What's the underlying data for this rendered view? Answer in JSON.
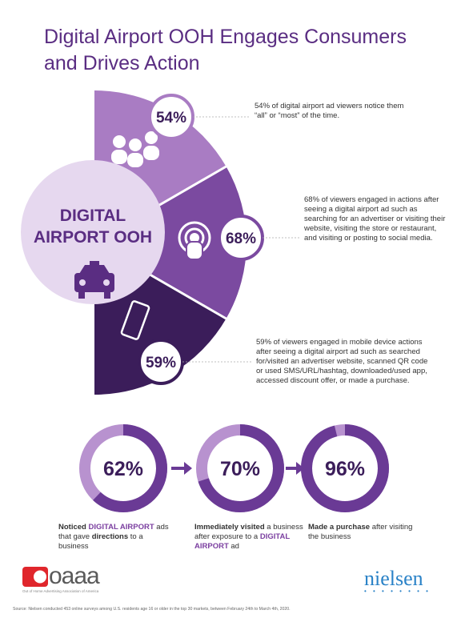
{
  "title": "Digital Airport OOH Engages Consumers and Drives Action",
  "center_label": [
    "DIGITAL",
    "AIRPORT OOH"
  ],
  "colors": {
    "title": "#5a2d82",
    "segment_light": "#a97cc3",
    "segment_mid": "#7b4aa0",
    "segment_dark": "#3b1d5a",
    "center_circle": "#e6d8ef",
    "donut_fill": "#6a3a95",
    "donut_track": "#b892cf",
    "highlight": "#7b3fa0"
  },
  "icons": [
    "people-icon",
    "broadcast-person-icon",
    "mobile-phone-icon",
    "taxi-icon",
    "arrow-right-icon"
  ],
  "chart_data": [
    {
      "type": "pie",
      "categories": [
        "notice ads",
        "engaged in actions",
        "engaged in mobile device actions"
      ],
      "values": [
        54,
        68,
        59
      ],
      "value_labels": [
        "54%",
        "68%",
        "59%"
      ]
    },
    {
      "type": "pie",
      "series": [
        {
          "name": "Noticed DIGITAL AIRPORT ads that gave directions to a business",
          "values": [
            62
          ]
        },
        {
          "name": "Immediately visited a business after exposure to a DIGITAL AIRPORT ad",
          "values": [
            70
          ]
        },
        {
          "name": "Made a purchase after visiting the business",
          "values": [
            96
          ]
        }
      ],
      "value_labels": [
        "62%",
        "70%",
        "96%"
      ]
    }
  ],
  "callouts": [
    "54% of digital airport ad viewers notice them “all” or “most” of the time.",
    "68% of viewers engaged in actions after seeing a digital airport ad such as searching for an advertiser or visiting their website, visiting the store or restaurant, and visiting or posting to social media.",
    "59% of viewers engaged in mobile device actions after seeing a digital airport ad such as searched for/visited an advertiser website, scanned QR code or used SMS/URL/hashtag, downloaded/used app, accessed discount offer, or made a purchase."
  ],
  "donut_labels": [
    {
      "parts": [
        {
          "text": "Noticed ",
          "style": "b"
        },
        {
          "text": "DIGITAL AIRPORT",
          "style": "hl"
        },
        {
          "text": " ads that gave ",
          "style": ""
        },
        {
          "text": "directions",
          "style": "b"
        },
        {
          "text": " to a business",
          "style": ""
        }
      ]
    },
    {
      "parts": [
        {
          "text": "Immediately visited",
          "style": "b"
        },
        {
          "text": " a business after exposure to a ",
          "style": ""
        },
        {
          "text": "DIGITAL AIRPORT",
          "style": "hl"
        },
        {
          "text": " ad",
          "style": ""
        }
      ]
    },
    {
      "parts": [
        {
          "text": "Made a purchase",
          "style": "b"
        },
        {
          "text": " after visiting the business",
          "style": ""
        }
      ]
    }
  ],
  "logos": {
    "oaaa": "oaaa",
    "oaaa_sub": "Out of Home Advertising Association of America",
    "nielsen": "nielsen"
  },
  "source": "Source: Nielsen conducted 453 online surveys among U.S. residents age 16 or older in the top 30 markets, between February 24th to March 4th, 2020."
}
